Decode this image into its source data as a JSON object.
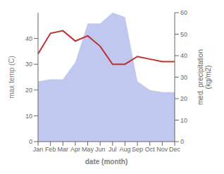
{
  "chart_data": {
    "type": "line",
    "categories": [
      "Jan",
      "Feb",
      "Mar",
      "Apr",
      "May",
      "Jun",
      "Jul",
      "Aug",
      "Sep",
      "Oct",
      "Nov",
      "Dec"
    ],
    "xlabel": "date (month)",
    "ylabel": "max temp (C)",
    "y2label": "med. precipitation\n(kg/m2)",
    "ylim": [
      0,
      50
    ],
    "yticks": [
      0,
      10,
      20,
      30,
      40
    ],
    "y2lim": [
      0,
      60
    ],
    "y2ticks": [
      0,
      10,
      20,
      30,
      40,
      50,
      60
    ],
    "grid": false,
    "series": [
      {
        "type": "area",
        "axis": "y2",
        "color": "#c0c8f0",
        "values": [
          28,
          29,
          29,
          37,
          55,
          55,
          60,
          58,
          28,
          24,
          23,
          23
        ]
      },
      {
        "type": "line",
        "color": "#c03030",
        "values": [
          34,
          42,
          43,
          39,
          41,
          37,
          30,
          30,
          33,
          32,
          31,
          31
        ]
      }
    ]
  }
}
